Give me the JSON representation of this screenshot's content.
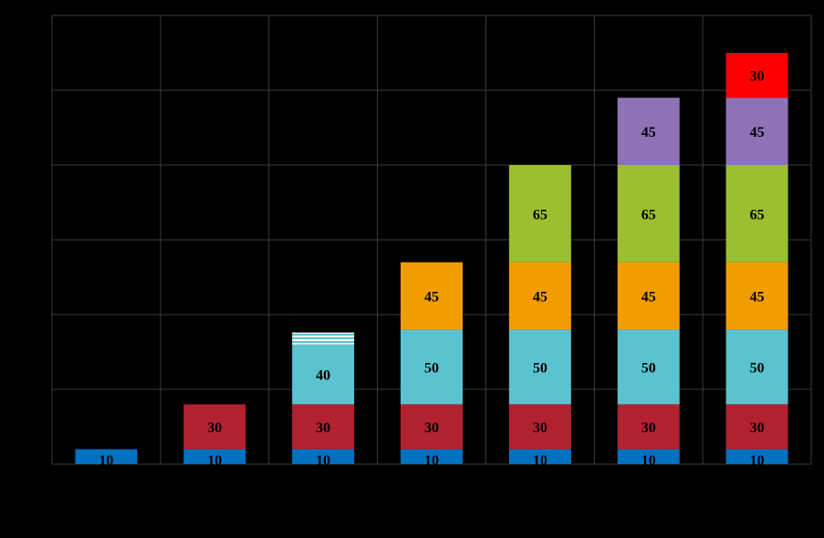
{
  "chart_data": {
    "type": "bar",
    "stacked": true,
    "categories": [
      "",
      "",
      "",
      "",
      "",
      "",
      ""
    ],
    "series": [
      {
        "color": "#0070c0",
        "values": [
          10,
          10,
          10,
          10,
          10,
          10,
          10
        ]
      },
      {
        "color": "#b2212f",
        "values": [
          0,
          30,
          30,
          30,
          30,
          30,
          30
        ]
      },
      {
        "color": "#5bc2d0",
        "values": [
          0,
          0,
          40,
          50,
          50,
          50,
          50
        ]
      },
      {
        "color": "#ffffff",
        "pattern": "horizontal-stripes",
        "values": [
          0,
          0,
          8,
          0,
          0,
          0,
          0
        ]
      },
      {
        "color": "#f39c00",
        "values": [
          0,
          0,
          0,
          45,
          45,
          45,
          45
        ]
      },
      {
        "color": "#9bbf30",
        "values": [
          0,
          0,
          0,
          0,
          65,
          65,
          65
        ]
      },
      {
        "color": "#8e72b6",
        "values": [
          0,
          0,
          0,
          0,
          0,
          45,
          45
        ]
      },
      {
        "color": "#ff0000",
        "values": [
          0,
          0,
          0,
          0,
          0,
          0,
          30
        ]
      }
    ],
    "data_labels": [
      [
        "10",
        "",
        "",
        "",
        "",
        "",
        "",
        ""
      ],
      [
        "10",
        "30",
        "",
        "",
        "",
        "",
        "",
        ""
      ],
      [
        "10",
        "30",
        "40",
        "",
        "",
        "",
        "",
        ""
      ],
      [
        "10",
        "30",
        "50",
        "",
        "45",
        "",
        "",
        ""
      ],
      [
        "10",
        "30",
        "50",
        "",
        "45",
        "65",
        "",
        ""
      ],
      [
        "10",
        "30",
        "50",
        "",
        "45",
        "65",
        "45",
        ""
      ],
      [
        "10",
        "30",
        "50",
        "",
        "45",
        "65",
        "45",
        "30"
      ]
    ],
    "ylim": [
      0,
      300
    ],
    "grid": true,
    "legend": "none",
    "background": "#000000",
    "grid_color": "#3c3c3c"
  }
}
